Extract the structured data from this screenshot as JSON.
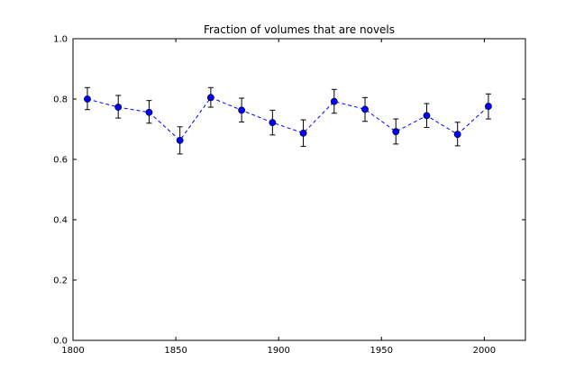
{
  "chart_data": {
    "type": "line",
    "title": "Fraction of volumes that are novels",
    "xlabel": "",
    "ylabel": "",
    "xlim": [
      1800,
      2020
    ],
    "ylim": [
      0.0,
      1.0
    ],
    "x_ticks": [
      1800,
      1850,
      1900,
      1950,
      2000
    ],
    "x_tick_labels": [
      "1800",
      "1850",
      "1900",
      "1950",
      "2000"
    ],
    "y_ticks": [
      0.0,
      0.2,
      0.4,
      0.6,
      0.8,
      1.0
    ],
    "y_tick_labels": [
      "0.0",
      "0.2",
      "0.4",
      "0.6",
      "0.8",
      "1.0"
    ],
    "grid": false,
    "legend": "none",
    "series": [
      {
        "color": "#0000ff",
        "line_style": "dashed",
        "marker": "circle",
        "x": [
          1807,
          1822,
          1837,
          1852,
          1867,
          1882,
          1897,
          1912,
          1927,
          1942,
          1957,
          1972,
          1987,
          2002
        ],
        "y": [
          0.8,
          0.773,
          0.756,
          0.663,
          0.805,
          0.763,
          0.722,
          0.687,
          0.792,
          0.766,
          0.692,
          0.745,
          0.683,
          0.776
        ],
        "error_low": [
          0.765,
          0.737,
          0.72,
          0.618,
          0.773,
          0.724,
          0.681,
          0.643,
          0.753,
          0.726,
          0.651,
          0.706,
          0.645,
          0.734
        ],
        "error_high": [
          0.838,
          0.812,
          0.795,
          0.708,
          0.838,
          0.803,
          0.763,
          0.731,
          0.832,
          0.805,
          0.734,
          0.785,
          0.723,
          0.817
        ]
      }
    ]
  }
}
